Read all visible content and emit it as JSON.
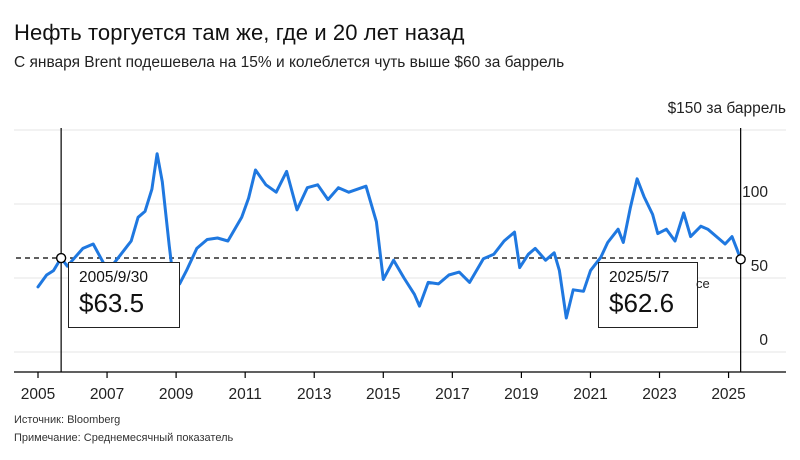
{
  "title": "Нефть торгуется там же, где и 20 лет назад",
  "subtitle": "С января Brent подешевела на 15% и колеблется чуть выше $60 за баррель",
  "unit_label": "$150 за баррель",
  "source": "Источник: Bloomberg",
  "note": "Примечание: Среднемесячный показатель",
  "clipped_label": "се",
  "colors": {
    "line": "#1f78e0",
    "grid": "#e6e6e6",
    "axis": "#000000"
  },
  "callouts": [
    {
      "date": "2005/9/30",
      "value": "$63.5"
    },
    {
      "date": "2025/5/7",
      "value": "$62.6"
    }
  ],
  "chart_data": {
    "type": "line",
    "title": "Нефть торгуется там же, где и 20 лет назад",
    "ylabel": "$ за баррель",
    "xlim": [
      2005,
      2026.2
    ],
    "ylim": [
      0,
      150
    ],
    "x_ticks": [
      "2005",
      "2007",
      "2009",
      "2011",
      "2013",
      "2015",
      "2017",
      "2019",
      "2021",
      "2023",
      "2025"
    ],
    "y_ticks": [
      "0",
      "50",
      "100",
      "150"
    ],
    "reference_value": 63.5,
    "series": [
      {
        "name": "Brent",
        "points": [
          [
            2005.0,
            44
          ],
          [
            2005.25,
            52
          ],
          [
            2005.45,
            55
          ],
          [
            2005.67,
            63.5
          ],
          [
            2005.85,
            58
          ],
          [
            2006.0,
            62
          ],
          [
            2006.3,
            70
          ],
          [
            2006.6,
            73
          ],
          [
            2006.9,
            60
          ],
          [
            2007.0,
            54
          ],
          [
            2007.4,
            66
          ],
          [
            2007.7,
            75
          ],
          [
            2007.9,
            91
          ],
          [
            2008.1,
            95
          ],
          [
            2008.3,
            110
          ],
          [
            2008.45,
            134
          ],
          [
            2008.6,
            115
          ],
          [
            2008.8,
            72
          ],
          [
            2008.95,
            43
          ],
          [
            2009.1,
            46
          ],
          [
            2009.3,
            55
          ],
          [
            2009.6,
            70
          ],
          [
            2009.9,
            76
          ],
          [
            2010.2,
            77
          ],
          [
            2010.5,
            75
          ],
          [
            2010.9,
            91
          ],
          [
            2011.1,
            104
          ],
          [
            2011.3,
            123
          ],
          [
            2011.6,
            113
          ],
          [
            2011.9,
            108
          ],
          [
            2012.2,
            122
          ],
          [
            2012.5,
            96
          ],
          [
            2012.8,
            111
          ],
          [
            2013.1,
            113
          ],
          [
            2013.4,
            103
          ],
          [
            2013.7,
            111
          ],
          [
            2014.0,
            108
          ],
          [
            2014.5,
            112
          ],
          [
            2014.8,
            88
          ],
          [
            2015.0,
            49
          ],
          [
            2015.3,
            62
          ],
          [
            2015.6,
            50
          ],
          [
            2015.9,
            39
          ],
          [
            2016.05,
            31
          ],
          [
            2016.3,
            47
          ],
          [
            2016.6,
            46
          ],
          [
            2016.9,
            52
          ],
          [
            2017.2,
            54
          ],
          [
            2017.5,
            47
          ],
          [
            2017.9,
            63
          ],
          [
            2018.2,
            66
          ],
          [
            2018.5,
            75
          ],
          [
            2018.8,
            81
          ],
          [
            2018.95,
            57
          ],
          [
            2019.2,
            66
          ],
          [
            2019.4,
            70
          ],
          [
            2019.7,
            62
          ],
          [
            2019.95,
            67
          ],
          [
            2020.1,
            55
          ],
          [
            2020.3,
            23
          ],
          [
            2020.5,
            42
          ],
          [
            2020.8,
            41
          ],
          [
            2021.0,
            55
          ],
          [
            2021.3,
            64
          ],
          [
            2021.5,
            74
          ],
          [
            2021.8,
            83
          ],
          [
            2021.95,
            74
          ],
          [
            2022.15,
            97
          ],
          [
            2022.35,
            117
          ],
          [
            2022.55,
            105
          ],
          [
            2022.8,
            93
          ],
          [
            2022.95,
            80
          ],
          [
            2023.2,
            83
          ],
          [
            2023.45,
            75
          ],
          [
            2023.7,
            94
          ],
          [
            2023.9,
            78
          ],
          [
            2024.2,
            85
          ],
          [
            2024.4,
            83
          ],
          [
            2024.65,
            78
          ],
          [
            2024.9,
            73
          ],
          [
            2025.1,
            78
          ],
          [
            2025.25,
            69
          ],
          [
            2025.35,
            62.6
          ]
        ]
      }
    ],
    "annotations": [
      {
        "x": 2005.67,
        "y": 63.5,
        "label": "2005/9/30 $63.5"
      },
      {
        "x": 2025.35,
        "y": 62.6,
        "label": "2025/5/7 $62.6"
      }
    ]
  }
}
